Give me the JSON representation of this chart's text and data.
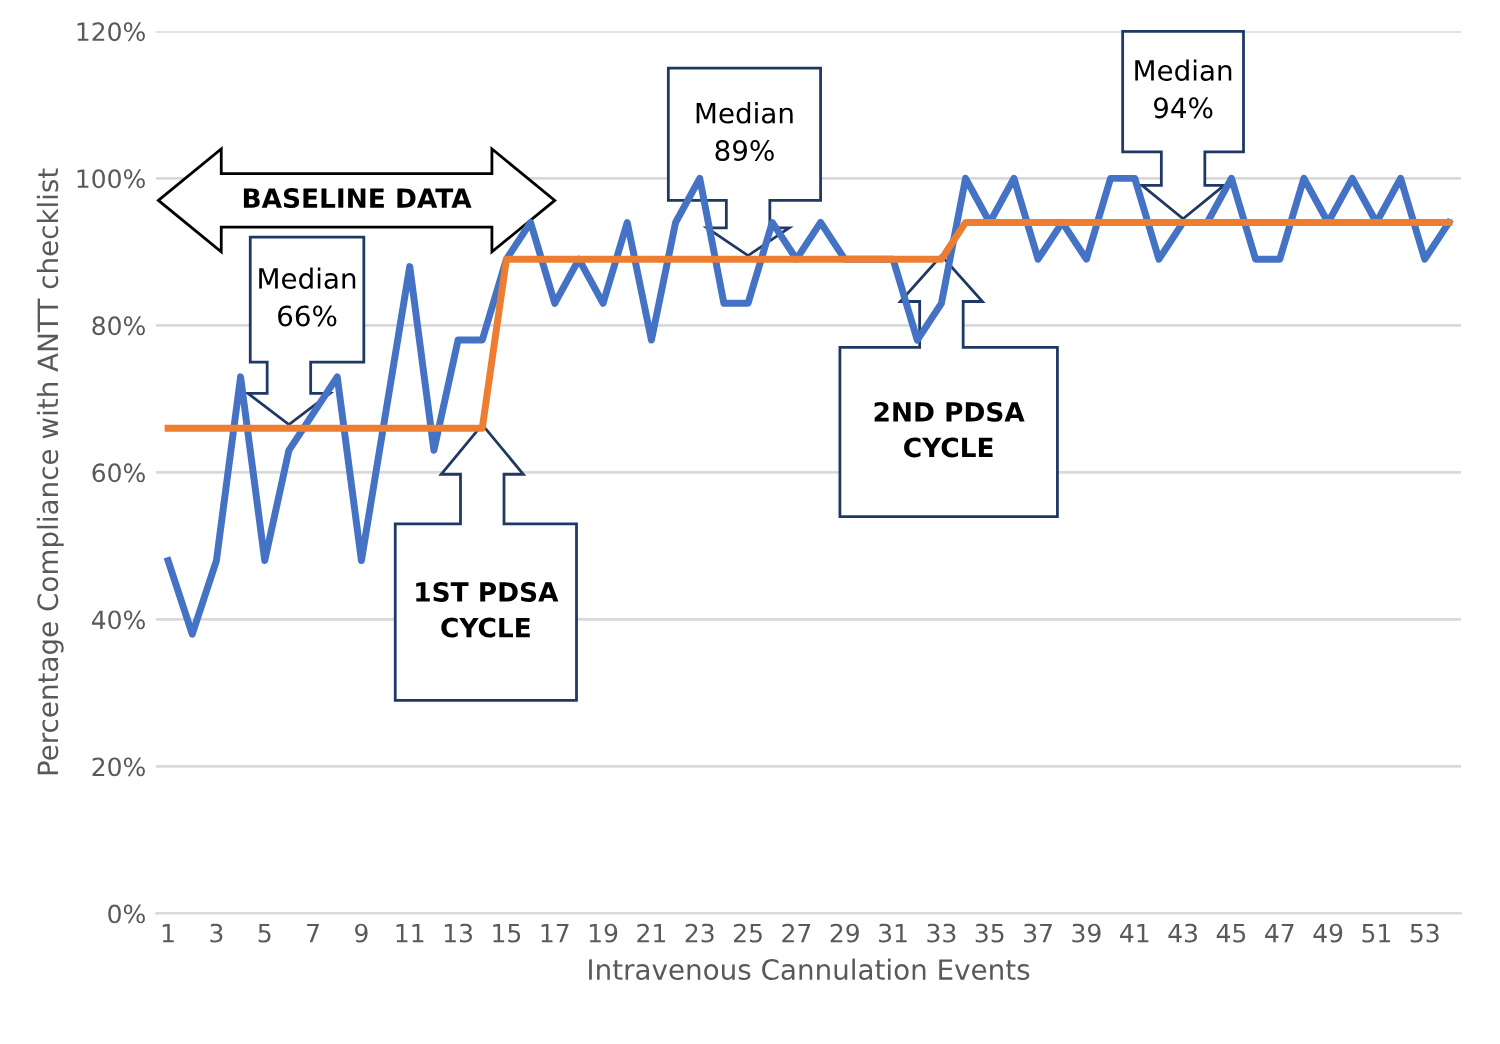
{
  "chart_data": {
    "type": "line",
    "xlabel": "Intravenous Cannulation Events",
    "ylabel": "Percentage Compliance with ANTT checklist",
    "categories": [
      "1",
      null,
      "3",
      null,
      "5",
      null,
      "7",
      null,
      "9",
      null,
      "11",
      null,
      "13",
      null,
      "15",
      null,
      "17",
      null,
      "19",
      null,
      "21",
      null,
      "23",
      null,
      "25",
      null,
      "27",
      null,
      "29",
      null,
      "31",
      null,
      "33",
      null,
      "35",
      null,
      "37",
      null,
      "39",
      null,
      "41",
      null,
      "43",
      null,
      "45",
      null,
      "47",
      null,
      "49",
      null,
      "51",
      null,
      "53",
      null
    ],
    "series": [
      {
        "color": "#4472c4",
        "values": [
          48,
          38,
          48,
          73,
          48,
          63,
          68,
          73,
          48,
          68,
          88,
          63,
          78,
          78,
          89,
          94,
          83,
          89,
          83,
          94,
          78,
          94,
          100,
          83,
          83,
          94,
          89,
          94,
          89,
          89,
          89,
          78,
          83,
          100,
          94,
          100,
          89,
          94,
          89,
          100,
          100,
          89,
          94,
          94,
          100,
          89,
          89,
          100,
          94,
          100,
          94,
          100,
          89,
          94
        ]
      },
      {
        "color": "#ed7d31",
        "values": [
          66,
          66,
          66,
          66,
          66,
          66,
          66,
          66,
          66,
          66,
          66,
          66,
          66,
          66,
          89,
          89,
          89,
          89,
          89,
          89,
          89,
          89,
          89,
          89,
          89,
          89,
          89,
          89,
          89,
          89,
          89,
          89,
          89,
          94,
          94,
          94,
          94,
          94,
          94,
          94,
          94,
          94,
          94,
          94,
          94,
          94,
          94,
          94,
          94,
          94,
          94,
          94,
          94,
          94
        ]
      }
    ],
    "ylim": [
      0,
      120
    ],
    "yticks": [
      {
        "value": 0,
        "label": "0%"
      },
      {
        "value": 20,
        "label": "20%"
      },
      {
        "value": 40,
        "label": "40%"
      },
      {
        "value": 60,
        "label": "60%"
      },
      {
        "value": 80,
        "label": "80%"
      },
      {
        "value": 100,
        "label": "100%"
      },
      {
        "value": 120,
        "label": "120%"
      }
    ],
    "grid": "y",
    "marker": "none",
    "line_style": "solid",
    "annotations": [
      "BASELINE DATA",
      "Median\n66%",
      "1ST PDSA\nCYCLE",
      "Median\n89%",
      "2ND PDSA\nCYCLE",
      "Median\n94%"
    ]
  }
}
